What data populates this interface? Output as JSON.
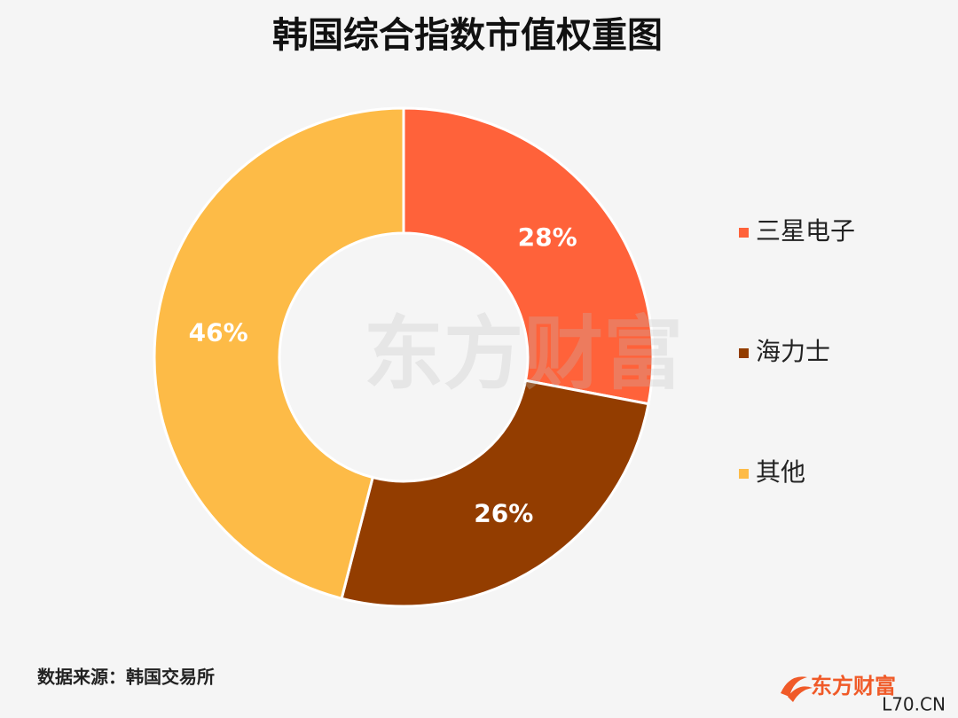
{
  "chart_data": {
    "type": "pie",
    "title": "韩国综合指数市值权重图",
    "categories": [
      "三星电子",
      "海力士",
      "其他"
    ],
    "values": [
      28,
      26,
      46
    ],
    "value_labels": [
      "28%",
      "26%",
      "46%"
    ],
    "colors": [
      "#ff623a",
      "#933d00",
      "#fdbb47"
    ],
    "donut": true,
    "legend": "right"
  },
  "source": "数据来源：韩国交易所",
  "watermark": "东方财富",
  "logo": "东方财富",
  "site_mark": "L70.CN"
}
